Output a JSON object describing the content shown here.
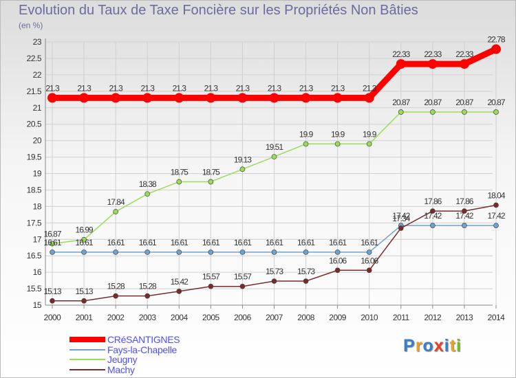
{
  "title": "Evolution du Taux de Taxe Foncière sur les Propriétés Non Bâties",
  "unit_label": "(en %)",
  "logo": {
    "letters": [
      "P",
      "r",
      "o",
      "x",
      "i",
      "t",
      "i"
    ],
    "colors": [
      "#3a7fc9",
      "#f0a020",
      "#3a7fc9",
      "#e8442a",
      "#3a7fc9",
      "#f0a020",
      "#76b82a"
    ]
  },
  "chart_data": {
    "type": "line",
    "x": [
      "2000",
      "2001",
      "2002",
      "2003",
      "2004",
      "2005",
      "2006",
      "2007",
      "2008",
      "2009",
      "2010",
      "2011",
      "2012",
      "2013",
      "2014"
    ],
    "ylim": [
      15,
      23
    ],
    "yticks": [
      "15",
      "15.5",
      "16",
      "16.5",
      "17",
      "17.5",
      "18",
      "18.5",
      "19",
      "19.5",
      "20",
      "20.5",
      "21",
      "21.5",
      "22",
      "22.5",
      "23"
    ],
    "grid": true,
    "legend_position": "bottom-left",
    "series": [
      {
        "name": "CRéSANTIGNES",
        "color": "#ff0000",
        "values": [
          21.3,
          21.3,
          21.3,
          21.3,
          21.3,
          21.3,
          21.3,
          21.3,
          21.3,
          21.3,
          21.3,
          22.33,
          22.33,
          22.33,
          22.78
        ],
        "labels": [
          "21.3",
          "21.3",
          "21.3",
          "21.3",
          "21.3",
          "21.3",
          "21.3",
          "21.3",
          "21.3",
          "21.3",
          "21.3",
          "22.33",
          "22.33",
          "22.33",
          "22.78"
        ]
      },
      {
        "name": "Fays-la-Chapelle",
        "color": "#6fa3cf",
        "values": [
          16.61,
          16.61,
          16.61,
          16.61,
          16.61,
          16.61,
          16.61,
          16.61,
          16.61,
          16.61,
          16.61,
          17.42,
          17.42,
          17.42,
          17.42
        ],
        "labels": [
          "16.61",
          "16.61",
          "16.61",
          "16.61",
          "16.61",
          "16.61",
          "16.61",
          "16.61",
          "16.61",
          "16.61",
          "16.61",
          "17.42",
          "17.42",
          "17.42",
          "17.42"
        ]
      },
      {
        "name": "Jeugny",
        "color": "#99dd55",
        "values": [
          16.87,
          16.99,
          17.84,
          18.38,
          18.75,
          18.75,
          19.13,
          19.51,
          19.9,
          19.9,
          19.9,
          20.87,
          20.87,
          20.87,
          20.87
        ],
        "labels": [
          "16.87",
          "16.99",
          "17.84",
          "18.38",
          "18.75",
          "18.75",
          "19.13",
          "19.51",
          "19.9",
          "19.9",
          "19.9",
          "20.87",
          "20.87",
          "20.87",
          "20.87"
        ]
      },
      {
        "name": "Machy",
        "color": "#7a2a2a",
        "values": [
          15.13,
          15.13,
          15.28,
          15.28,
          15.42,
          15.57,
          15.57,
          15.73,
          15.73,
          16.06,
          16.06,
          17.34,
          17.86,
          17.86,
          18.04
        ],
        "labels": [
          "15.13",
          "15.13",
          "15.28",
          "15.28",
          "15.42",
          "15.57",
          "15.57",
          "15.73",
          "15.73",
          "16.06",
          "16.06",
          "17.34",
          "17.86",
          "17.86",
          "18.04"
        ]
      }
    ]
  }
}
